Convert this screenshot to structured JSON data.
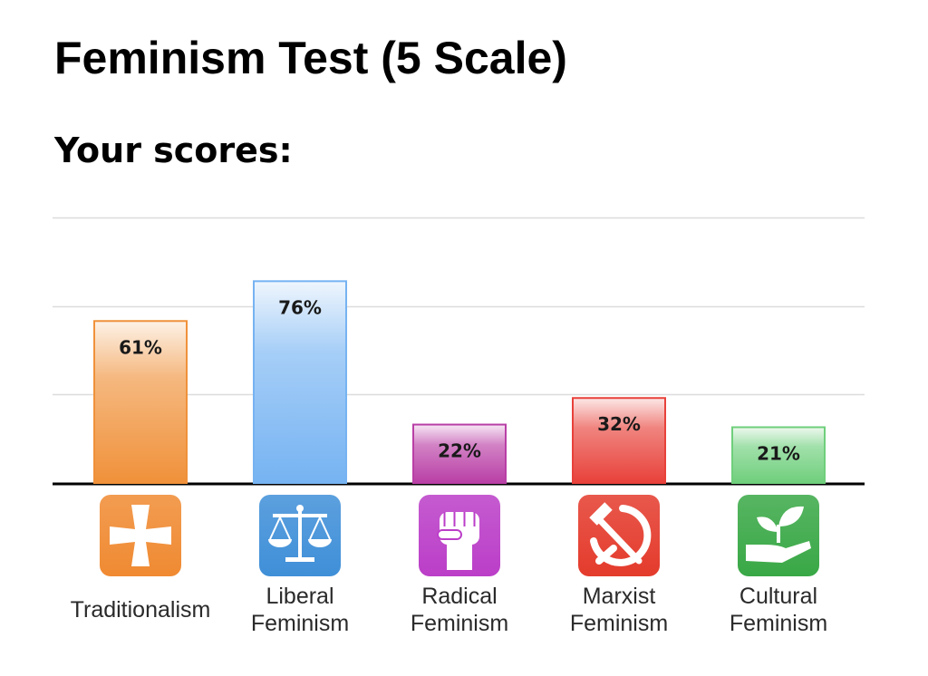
{
  "header": {
    "title": "Feminism Test (5 Scale)",
    "subtitle": "Your scores:"
  },
  "chart_data": {
    "type": "bar",
    "categories": [
      "Traditionalism",
      "Liberal Feminism",
      "Radical Feminism",
      "Marxist Feminism",
      "Cultural Feminism"
    ],
    "category_lines": [
      [
        "Traditionalism"
      ],
      [
        "Liberal",
        "Feminism"
      ],
      [
        "Radical",
        "Feminism"
      ],
      [
        "Marxist",
        "Feminism"
      ],
      [
        "Cultural",
        "Feminism"
      ]
    ],
    "values": [
      61,
      76,
      22,
      32,
      21
    ],
    "data_labels": [
      "61%",
      "76%",
      "22%",
      "32%",
      "21%"
    ],
    "ylim": [
      0,
      100
    ],
    "grid": true,
    "legend": "none",
    "colors": [
      "#f0913a",
      "#76b3f2",
      "#b93fa6",
      "#e8413a",
      "#6fcf7c"
    ],
    "icons": [
      "cross-icon",
      "scales-icon",
      "fist-icon",
      "hammer-sickle-icon",
      "plant-hand-icon"
    ],
    "icon_colors": [
      "#f08a32",
      "#3f8fd8",
      "#bb3ec8",
      "#e43b2c",
      "#39a846"
    ]
  }
}
